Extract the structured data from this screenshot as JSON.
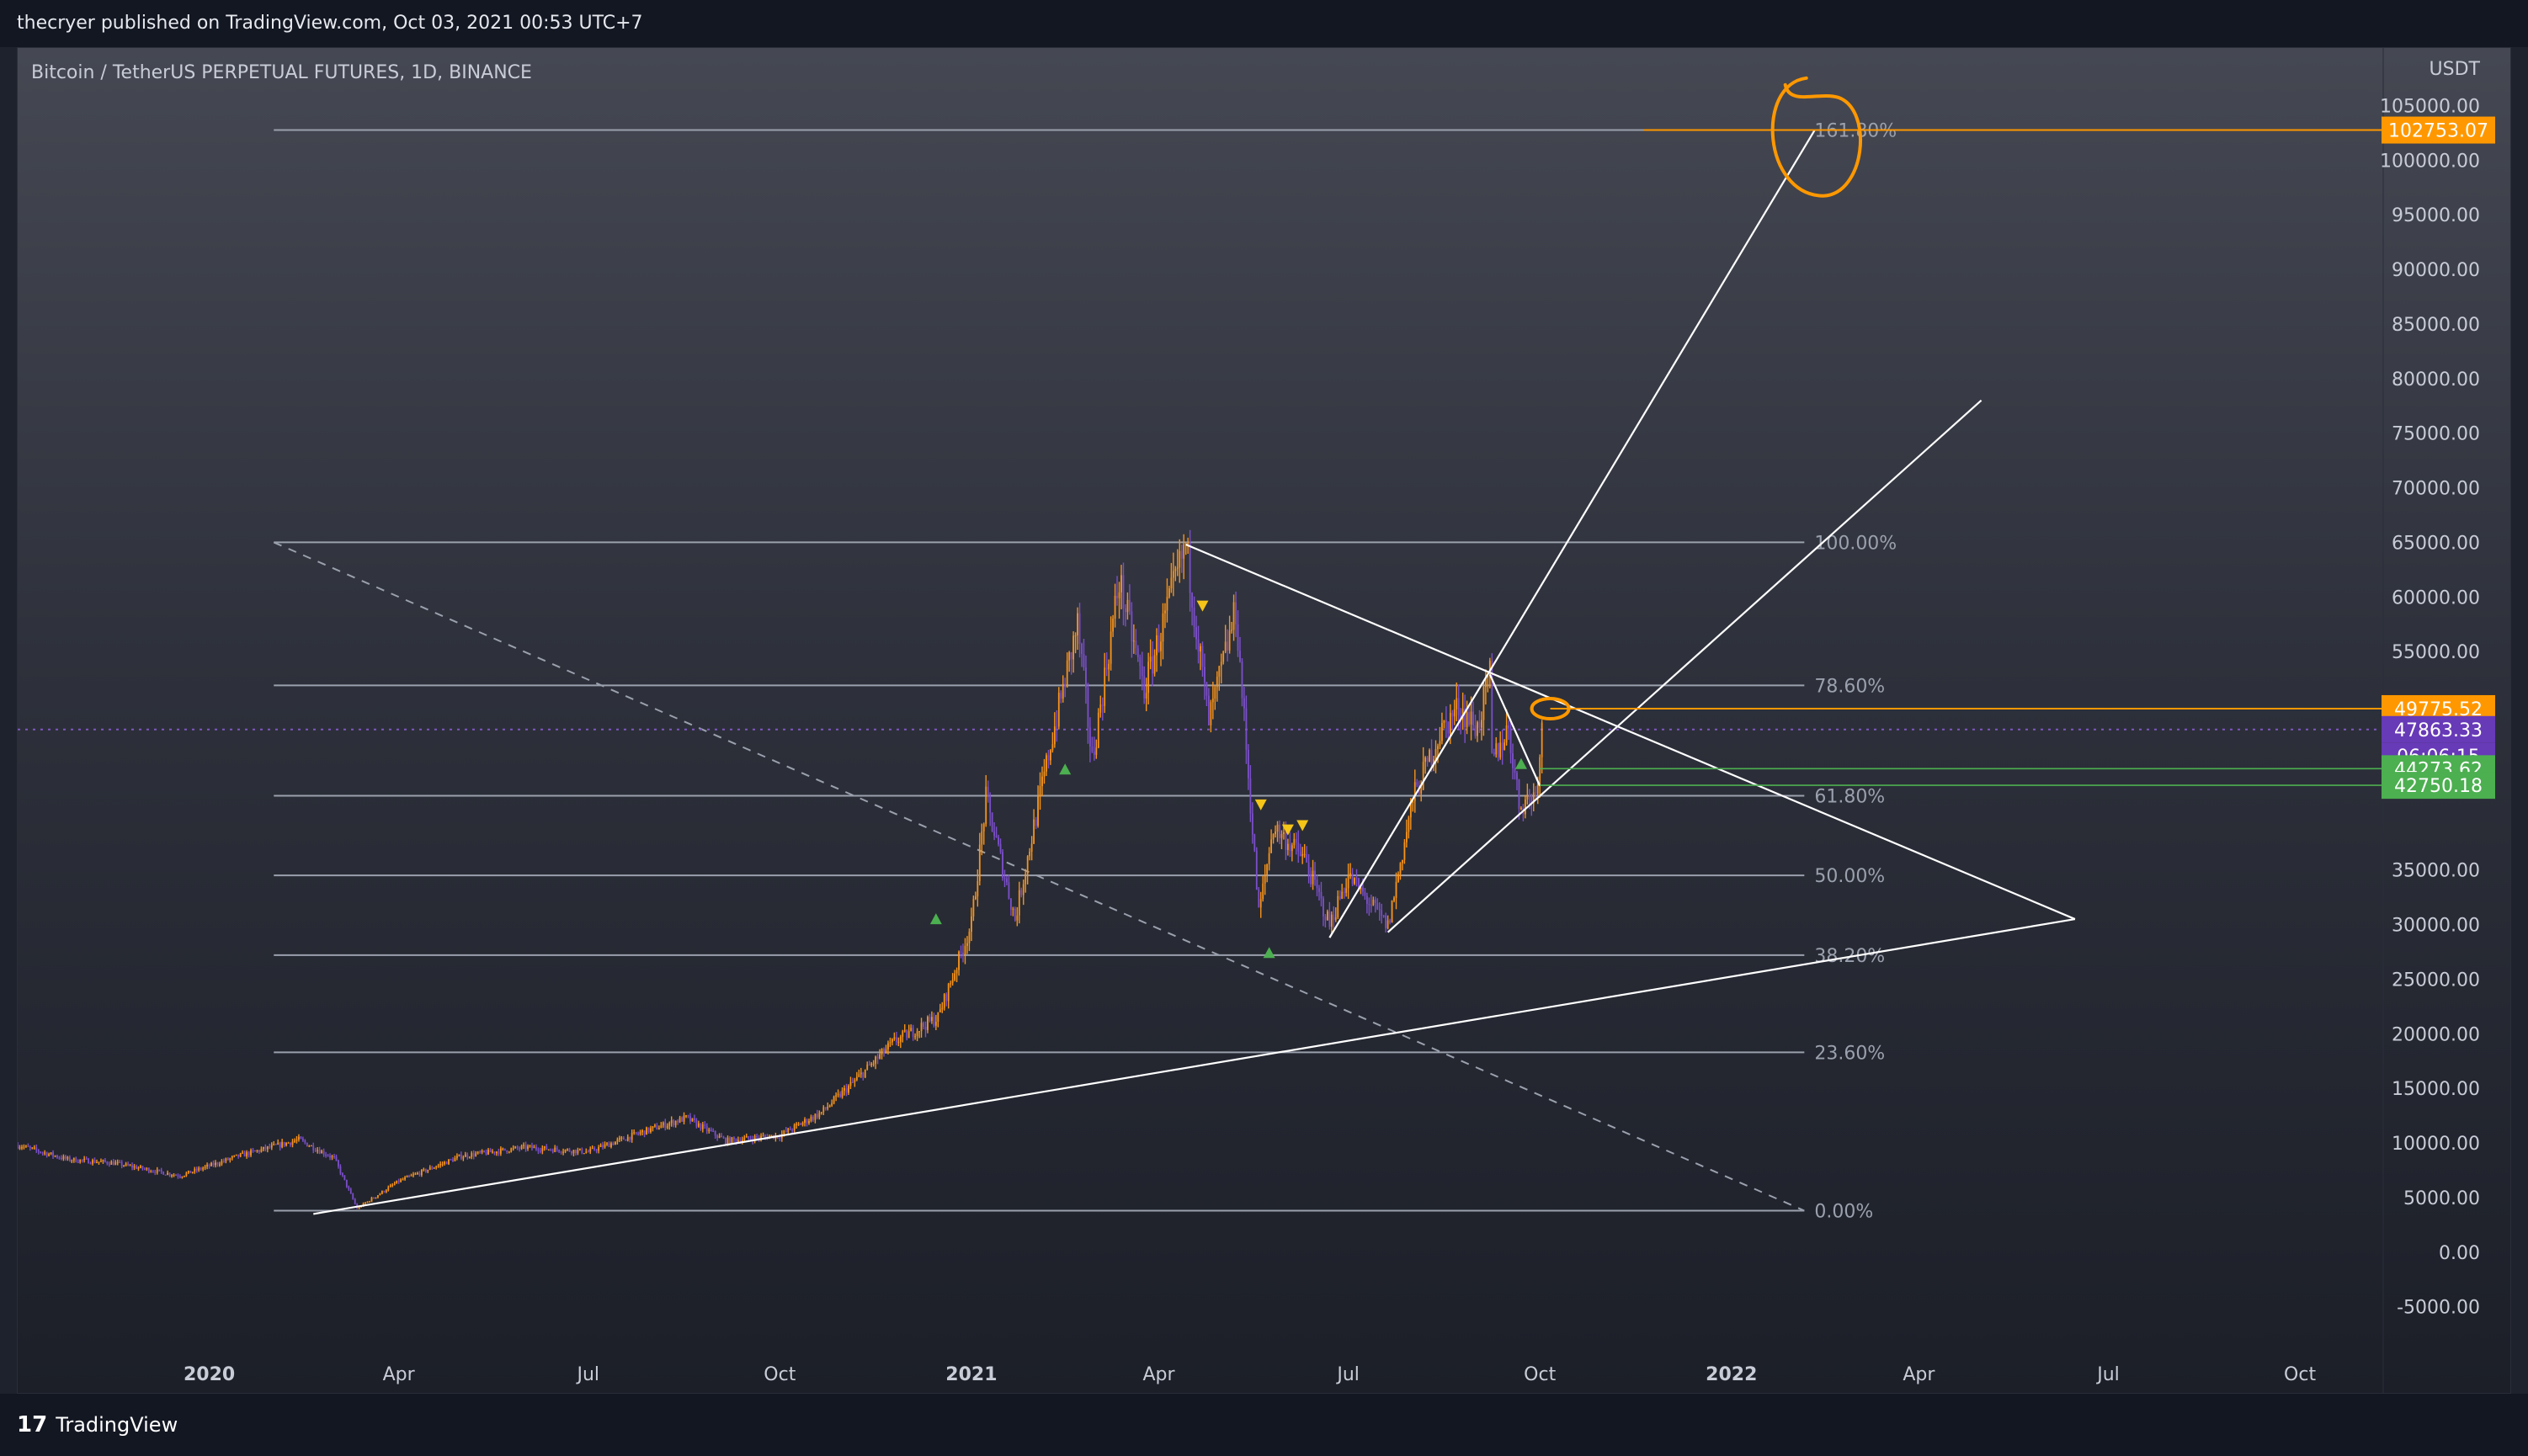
{
  "header": {
    "publisher_line": "thecryer published on TradingView.com, Oct 03, 2021 00:53 UTC+7"
  },
  "footer": {
    "logo_mark": "17",
    "brand": "TradingView"
  },
  "chart_data": {
    "type": "candlestick",
    "title": "Bitcoin / TetherUS PERPETUAL FUTURES, 1D, BINANCE",
    "currency_label": "USDT",
    "colors": {
      "up": "#f7931a",
      "down": "#7b4fc9",
      "fib_line": "#9aa0ad",
      "trend_line": "#ffffff",
      "target": "#ff9800",
      "green_level": "#4caf50",
      "price_tag": "#673ab7"
    },
    "x_axis": {
      "start": "2019-10-01",
      "end": "2022-11-10",
      "ticks": [
        {
          "date": "2020-01-01",
          "label": "2020",
          "bold": true
        },
        {
          "date": "2020-04-01",
          "label": "Apr"
        },
        {
          "date": "2020-07-01",
          "label": "Jul"
        },
        {
          "date": "2020-10-01",
          "label": "Oct"
        },
        {
          "date": "2021-01-01",
          "label": "2021",
          "bold": true
        },
        {
          "date": "2021-04-01",
          "label": "Apr"
        },
        {
          "date": "2021-07-01",
          "label": "Jul"
        },
        {
          "date": "2021-10-01",
          "label": "Oct"
        },
        {
          "date": "2022-01-01",
          "label": "2022",
          "bold": true
        },
        {
          "date": "2022-04-01",
          "label": "Apr"
        },
        {
          "date": "2022-07-01",
          "label": "Jul"
        },
        {
          "date": "2022-10-01",
          "label": "Oct"
        }
      ]
    },
    "y_axis": {
      "range": [
        -8800,
        109500
      ],
      "ticks": [
        {
          "value": 105000,
          "label": "105000.00"
        },
        {
          "value": 100000,
          "label": "100000.00"
        },
        {
          "value": 95000,
          "label": "95000.00"
        },
        {
          "value": 90000,
          "label": "90000.00"
        },
        {
          "value": 85000,
          "label": "85000.00"
        },
        {
          "value": 80000,
          "label": "80000.00"
        },
        {
          "value": 75000,
          "label": "75000.00"
        },
        {
          "value": 70000,
          "label": "70000.00"
        },
        {
          "value": 65000,
          "label": "65000.00"
        },
        {
          "value": 60000,
          "label": "60000.00"
        },
        {
          "value": 55000,
          "label": "55000.00"
        },
        {
          "value": 35000,
          "label": "35000.00"
        },
        {
          "value": 30000,
          "label": "30000.00"
        },
        {
          "value": 25000,
          "label": "25000.00"
        },
        {
          "value": 20000,
          "label": "20000.00"
        },
        {
          "value": 15000,
          "label": "15000.00"
        },
        {
          "value": 10000,
          "label": "10000.00"
        },
        {
          "value": 5000,
          "label": "5000.00"
        },
        {
          "value": 0,
          "label": "0.00"
        },
        {
          "value": -5000,
          "label": "-5000.00"
        }
      ]
    },
    "fib_levels": {
      "start_date": "2020-02-01",
      "end_date": "2022-02-05",
      "levels": [
        {
          "value": 102753,
          "label": "161.80%",
          "start_date": "2020-02-01"
        },
        {
          "value": 65000,
          "label": "100.00%",
          "start_date": "2020-02-01"
        },
        {
          "value": 51900,
          "label": "78.60%",
          "start_date": "2020-02-01"
        },
        {
          "value": 41800,
          "label": "61.80%",
          "start_date": "2020-02-01"
        },
        {
          "value": 34500,
          "label": "50.00%",
          "start_date": "2020-02-01"
        },
        {
          "value": 27200,
          "label": "38.20%",
          "start_date": "2020-02-01"
        },
        {
          "value": 18300,
          "label": "23.60%",
          "start_date": "2020-02-01"
        },
        {
          "value": 3800,
          "label": "0.00%",
          "start_date": "2020-02-01"
        }
      ]
    },
    "price_tags": [
      {
        "value": 102753.07,
        "label": "102753.07",
        "color": "#ff9800"
      },
      {
        "value": 49775.52,
        "label": "49775.52",
        "color": "#ff9800"
      },
      {
        "value": 47863.33,
        "label": "47863.33",
        "color": "#673ab7"
      },
      {
        "value": 44273.62,
        "label": "44273.62",
        "color": "#4caf50"
      },
      {
        "value": 42750.18,
        "label": "42750.18",
        "color": "#4caf50"
      }
    ],
    "countdown": "06:06:15",
    "current_price": 47863.33,
    "trend_lines": [
      {
        "from": [
          "2020-02-20",
          3500
        ],
        "to": [
          "2022-06-15",
          30500
        ]
      },
      {
        "from": [
          "2021-04-14",
          64800
        ],
        "to": [
          "2022-06-15",
          30500
        ]
      },
      {
        "from": [
          "2021-06-22",
          28800
        ],
        "to": [
          "2022-02-10",
          102753
        ]
      },
      {
        "from": [
          "2021-07-20",
          29300
        ],
        "to": [
          "2022-05-01",
          78000
        ]
      },
      {
        "from": [
          "2021-09-07",
          52900
        ],
        "to": [
          "2021-10-01",
          42700
        ]
      }
    ],
    "dashed_line": {
      "from": [
        "2020-02-01",
        65000
      ],
      "to": [
        "2022-02-05",
        3800
      ]
    },
    "target_lines": [
      {
        "from_date": "2021-11-20",
        "value": 102753.07
      },
      {
        "from_date": "2021-10-06",
        "value": 49775.52
      }
    ],
    "green_lines": [
      {
        "from_date": "2021-10-01",
        "value": 44273.62
      },
      {
        "from_date": "2021-10-01",
        "value": 42750.18
      }
    ],
    "annotations": [
      {
        "type": "circle",
        "date": "2022-02-10",
        "value": 101500
      },
      {
        "type": "circle",
        "date": "2021-10-06",
        "value": 49775
      }
    ],
    "signals": [
      {
        "date": "2020-12-15",
        "value": 30500,
        "kind": "up"
      },
      {
        "date": "2021-02-15",
        "value": 44200,
        "kind": "up"
      },
      {
        "date": "2021-04-22",
        "value": 59200,
        "kind": "down"
      },
      {
        "date": "2021-05-20",
        "value": 41000,
        "kind": "down"
      },
      {
        "date": "2021-05-24",
        "value": 27400,
        "kind": "up"
      },
      {
        "date": "2021-06-02",
        "value": 38700,
        "kind": "down"
      },
      {
        "date": "2021-06-09",
        "value": 39100,
        "kind": "down"
      },
      {
        "date": "2021-09-22",
        "value": 44700,
        "kind": "up"
      }
    ],
    "price_anchors": [
      [
        "2019-10-01",
        9800
      ],
      [
        "2019-10-25",
        8500
      ],
      [
        "2019-11-15",
        8200
      ],
      [
        "2019-12-18",
        7000
      ],
      [
        "2020-01-15",
        8800
      ],
      [
        "2020-02-13",
        10300
      ],
      [
        "2020-03-01",
        8600
      ],
      [
        "2020-03-12",
        4000
      ],
      [
        "2020-04-01",
        6500
      ],
      [
        "2020-05-01",
        8800
      ],
      [
        "2020-06-01",
        9600
      ],
      [
        "2020-07-01",
        9200
      ],
      [
        "2020-07-27",
        11000
      ],
      [
        "2020-08-17",
        12300
      ],
      [
        "2020-09-05",
        10200
      ],
      [
        "2020-10-01",
        10700
      ],
      [
        "2020-10-21",
        12800
      ],
      [
        "2020-11-05",
        15500
      ],
      [
        "2020-11-25",
        19300
      ],
      [
        "2020-12-16",
        21500
      ],
      [
        "2021-01-01",
        30000
      ],
      [
        "2021-01-08",
        41500
      ],
      [
        "2021-01-22",
        30500
      ],
      [
        "2021-02-08",
        46500
      ],
      [
        "2021-02-21",
        57500
      ],
      [
        "2021-02-28",
        45000
      ],
      [
        "2021-03-13",
        61500
      ],
      [
        "2021-03-25",
        51500
      ],
      [
        "2021-04-14",
        64800
      ],
      [
        "2021-04-25",
        48500
      ],
      [
        "2021-05-08",
        58800
      ],
      [
        "2021-05-19",
        31000
      ],
      [
        "2021-05-26",
        39000
      ],
      [
        "2021-06-10",
        36000
      ],
      [
        "2021-06-22",
        30000
      ],
      [
        "2021-07-01",
        34500
      ],
      [
        "2021-07-20",
        29800
      ],
      [
        "2021-08-01",
        41500
      ],
      [
        "2021-08-14",
        47500
      ],
      [
        "2021-08-23",
        50000
      ],
      [
        "2021-09-01",
        48000
      ],
      [
        "2021-09-07",
        52900
      ],
      [
        "2021-09-08",
        45000
      ],
      [
        "2021-09-16",
        48000
      ],
      [
        "2021-09-21",
        41000
      ],
      [
        "2021-09-29",
        42000
      ],
      [
        "2021-10-02",
        47863
      ]
    ]
  }
}
